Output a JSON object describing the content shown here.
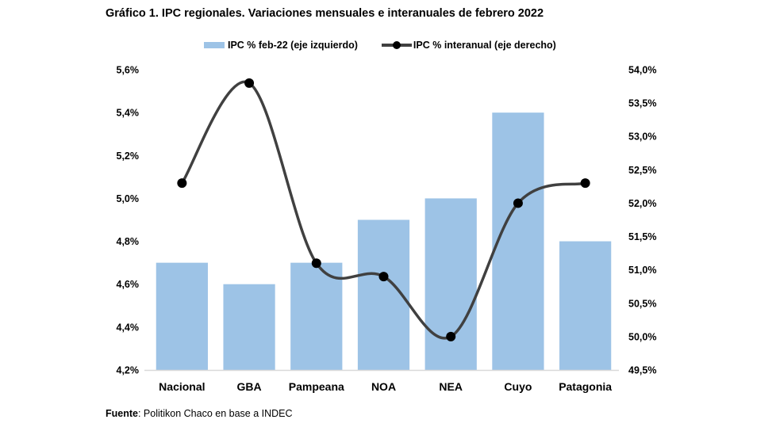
{
  "chart_data": {
    "type": "bar",
    "title": "Gráfico 1. IPC regionales. Variaciones mensuales e interanuales de febrero 2022",
    "categories": [
      "Nacional",
      "GBA",
      "Pampeana",
      "NOA",
      "NEA",
      "Cuyo",
      "Patagonia"
    ],
    "series": [
      {
        "name": "IPC % feb-22 (eje izquierdo)",
        "type": "bar",
        "axis": "left",
        "color": "#9dc3e6",
        "values": [
          4.7,
          4.6,
          4.7,
          4.9,
          5.0,
          5.4,
          4.8
        ]
      },
      {
        "name": "IPC % interanual (eje derecho)",
        "type": "line",
        "axis": "right",
        "color": "#404040",
        "marker_color": "#000000",
        "smooth": true,
        "values": [
          52.3,
          53.8,
          51.1,
          50.9,
          50.0,
          52.0,
          52.3
        ]
      }
    ],
    "left_axis": {
      "ylim": [
        4.2,
        5.6
      ],
      "ticks": [
        "4,2%",
        "4,4%",
        "4,6%",
        "4,8%",
        "5,0%",
        "5,2%",
        "5,4%",
        "5,6%"
      ],
      "tick_values": [
        4.2,
        4.4,
        4.6,
        4.8,
        5.0,
        5.2,
        5.4,
        5.6
      ]
    },
    "right_axis": {
      "ylim": [
        49.5,
        54.0
      ],
      "ticks": [
        "49,5%",
        "50,0%",
        "50,5%",
        "51,0%",
        "51,5%",
        "52,0%",
        "52,5%",
        "53,0%",
        "53,5%",
        "54,0%"
      ],
      "tick_values": [
        49.5,
        50.0,
        50.5,
        51.0,
        51.5,
        52.0,
        52.5,
        53.0,
        53.5,
        54.0
      ]
    },
    "xlabel": "",
    "ylabel": "",
    "grid": false,
    "legend_position": "top"
  },
  "footer": {
    "label": "Fuente",
    "text": ": Politikon Chaco en base a INDEC"
  }
}
